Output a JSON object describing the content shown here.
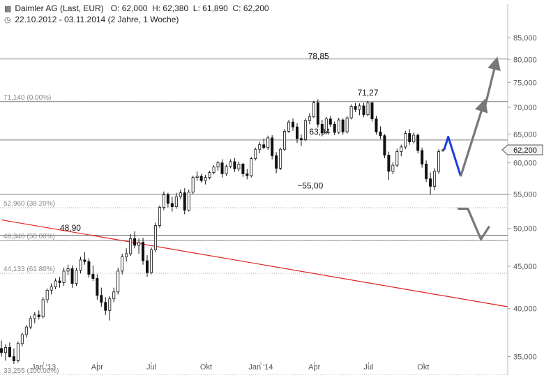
{
  "header": {
    "instrument": "Daimler AG (Last, EUR)",
    "quote": "O: 62,000  H: 62,380  L: 61,890  C: 62,200",
    "period": "22.10.2012 - 03.11.2014 (2 Jahre, 1 Woche)",
    "chart_icon": "candlestick-icon",
    "clock_icon": "clock-icon"
  },
  "chart_data": {
    "type": "candlestick",
    "y_axis": {
      "ticks": [
        35,
        40,
        45,
        50,
        55,
        60,
        65,
        70,
        75,
        80,
        85
      ],
      "tick_labels": [
        "35,000",
        "40,000",
        "45,000",
        "50,000",
        "55,000",
        "60,000",
        "65,000",
        "70,000",
        "75,000",
        "80,000",
        "85,000"
      ],
      "scale": "log",
      "ylim": [
        34.5,
        87
      ],
      "position": "right"
    },
    "x_axis": {
      "tick_labels": [
        "Jan '13",
        "Apr",
        "Jul",
        "Okt",
        "Jan '14",
        "Apr",
        "Jul",
        "Okt"
      ],
      "tick_dates": [
        "2013-01-01",
        "2013-04-01",
        "2013-07-01",
        "2013-10-01",
        "2014-01-01",
        "2014-04-01",
        "2014-07-01",
        "2014-10-01"
      ],
      "range": [
        "2012-10-22",
        "2015-02-20"
      ]
    },
    "last_price_label": "62,200",
    "last_price": 62.2,
    "fibonacci_levels": [
      {
        "label": "71,140 (0.00%)",
        "value": 71.14
      },
      {
        "label": "52,960 (38.20%)",
        "value": 52.96
      },
      {
        "label": "48,346 (50.00%)",
        "value": 48.346
      },
      {
        "label": "44,133 (61.80%)",
        "value": 44.133
      },
      {
        "label": "33,255 (100.00%)",
        "value": 33.255
      }
    ],
    "horizontal_lines": [
      80.1,
      71.14,
      63.94,
      55.0,
      49.05,
      48.346
    ],
    "annotations": [
      {
        "text": "78,85",
        "date": "2014-04-08",
        "value": 78.85
      },
      {
        "text": "71,27",
        "date": "2014-06-30",
        "value": 71.27
      },
      {
        "text": "63,94",
        "date": "2014-04-10",
        "value": 63.94
      },
      {
        "text": "~55,00",
        "date": "2014-03-25",
        "value": 55.0
      },
      {
        "text": "48,90",
        "date": "2013-02-15",
        "value": 48.9
      }
    ],
    "trendline": {
      "color": "#e02020",
      "points": [
        {
          "date": "2012-10-22",
          "value": 51.2
        },
        {
          "date": "2015-02-20",
          "value": 40.2
        }
      ]
    },
    "projections": [
      {
        "color": "#1a3fd8",
        "arrow": false,
        "points": [
          {
            "date": "2014-11-05",
            "value": 62.2
          },
          {
            "date": "2014-11-12",
            "value": 64.5
          },
          {
            "date": "2014-12-03",
            "value": 57.8
          }
        ]
      },
      {
        "color": "#777777",
        "arrow": true,
        "points": [
          {
            "date": "2014-12-03",
            "value": 57.8
          },
          {
            "date": "2015-01-10",
            "value": 70.5
          }
        ]
      },
      {
        "color": "#777777",
        "arrow": true,
        "points": [
          {
            "date": "2015-01-12",
            "value": 69.8
          },
          {
            "date": "2015-01-31",
            "value": 79.2
          }
        ]
      },
      {
        "color": "#777777",
        "arrow": false,
        "points": [
          {
            "date": "2014-11-28",
            "value": 52.8
          },
          {
            "date": "2014-12-15",
            "value": 52.8
          },
          {
            "date": "2015-01-06",
            "value": 48.5
          },
          {
            "date": "2015-01-20",
            "value": 50.3
          }
        ]
      }
    ],
    "series": [
      {
        "date": "2012-10-22",
        "open": 35.8,
        "high": 36.6,
        "low": 35.0,
        "close": 35.4
      },
      {
        "date": "2012-10-29",
        "open": 35.4,
        "high": 36.2,
        "low": 34.6,
        "close": 35.9
      },
      {
        "date": "2012-11-05",
        "open": 35.9,
        "high": 36.4,
        "low": 34.9,
        "close": 35.0
      },
      {
        "date": "2012-11-12",
        "open": 35.0,
        "high": 35.8,
        "low": 34.3,
        "close": 34.6
      },
      {
        "date": "2012-11-19",
        "open": 34.6,
        "high": 36.5,
        "low": 34.4,
        "close": 36.3
      },
      {
        "date": "2012-11-26",
        "open": 36.3,
        "high": 37.4,
        "low": 36.0,
        "close": 37.2
      },
      {
        "date": "2012-12-03",
        "open": 37.2,
        "high": 38.2,
        "low": 36.9,
        "close": 38.0
      },
      {
        "date": "2012-12-10",
        "open": 38.0,
        "high": 39.2,
        "low": 37.8,
        "close": 38.9
      },
      {
        "date": "2012-12-17",
        "open": 38.9,
        "high": 39.6,
        "low": 38.4,
        "close": 39.3
      },
      {
        "date": "2012-12-24",
        "open": 39.3,
        "high": 39.8,
        "low": 38.8,
        "close": 39.1
      },
      {
        "date": "2012-12-31",
        "open": 39.1,
        "high": 41.3,
        "low": 38.9,
        "close": 41.0
      },
      {
        "date": "2013-01-07",
        "open": 41.0,
        "high": 42.3,
        "low": 40.6,
        "close": 42.1
      },
      {
        "date": "2013-01-14",
        "open": 42.1,
        "high": 42.9,
        "low": 41.6,
        "close": 42.5
      },
      {
        "date": "2013-01-21",
        "open": 42.5,
        "high": 43.5,
        "low": 42.2,
        "close": 43.2
      },
      {
        "date": "2013-01-28",
        "open": 43.2,
        "high": 43.7,
        "low": 42.4,
        "close": 43.0
      },
      {
        "date": "2013-02-04",
        "open": 43.0,
        "high": 44.8,
        "low": 42.6,
        "close": 44.4
      },
      {
        "date": "2013-02-11",
        "open": 44.4,
        "high": 45.2,
        "low": 43.9,
        "close": 44.7
      },
      {
        "date": "2013-02-18",
        "open": 44.7,
        "high": 45.1,
        "low": 42.4,
        "close": 42.9
      },
      {
        "date": "2013-02-25",
        "open": 42.9,
        "high": 44.8,
        "low": 42.6,
        "close": 44.5
      },
      {
        "date": "2013-03-04",
        "open": 44.5,
        "high": 46.2,
        "low": 44.1,
        "close": 45.8
      },
      {
        "date": "2013-03-11",
        "open": 45.8,
        "high": 46.8,
        "low": 45.2,
        "close": 45.6
      },
      {
        "date": "2013-03-18",
        "open": 45.6,
        "high": 46.0,
        "low": 43.6,
        "close": 44.0
      },
      {
        "date": "2013-03-25",
        "open": 44.0,
        "high": 45.1,
        "low": 43.2,
        "close": 43.5
      },
      {
        "date": "2013-04-01",
        "open": 43.5,
        "high": 44.0,
        "low": 41.0,
        "close": 41.5
      },
      {
        "date": "2013-04-08",
        "open": 41.5,
        "high": 42.4,
        "low": 40.2,
        "close": 40.7
      },
      {
        "date": "2013-04-15",
        "open": 40.7,
        "high": 41.3,
        "low": 39.3,
        "close": 39.8
      },
      {
        "date": "2013-04-22",
        "open": 39.8,
        "high": 41.4,
        "low": 38.7,
        "close": 41.1
      },
      {
        "date": "2013-04-29",
        "open": 41.1,
        "high": 42.4,
        "low": 40.7,
        "close": 41.9
      },
      {
        "date": "2013-05-06",
        "open": 41.9,
        "high": 44.8,
        "low": 41.6,
        "close": 44.4
      },
      {
        "date": "2013-05-13",
        "open": 44.4,
        "high": 46.6,
        "low": 44.0,
        "close": 46.2
      },
      {
        "date": "2013-05-20",
        "open": 46.2,
        "high": 47.3,
        "low": 45.6,
        "close": 46.6
      },
      {
        "date": "2013-05-27",
        "open": 46.6,
        "high": 49.2,
        "low": 46.3,
        "close": 48.6
      },
      {
        "date": "2013-06-03",
        "open": 48.6,
        "high": 49.6,
        "low": 47.3,
        "close": 47.7
      },
      {
        "date": "2013-06-10",
        "open": 47.7,
        "high": 48.6,
        "low": 46.6,
        "close": 48.1
      },
      {
        "date": "2013-06-17",
        "open": 48.1,
        "high": 48.7,
        "low": 45.2,
        "close": 45.7
      },
      {
        "date": "2013-06-24",
        "open": 45.7,
        "high": 46.4,
        "low": 43.7,
        "close": 44.2
      },
      {
        "date": "2013-07-01",
        "open": 44.2,
        "high": 47.4,
        "low": 44.0,
        "close": 47.1
      },
      {
        "date": "2013-07-08",
        "open": 47.1,
        "high": 50.8,
        "low": 46.8,
        "close": 50.4
      },
      {
        "date": "2013-07-15",
        "open": 50.4,
        "high": 53.3,
        "low": 50.1,
        "close": 53.0
      },
      {
        "date": "2013-07-22",
        "open": 53.0,
        "high": 55.4,
        "low": 52.6,
        "close": 54.9
      },
      {
        "date": "2013-07-29",
        "open": 54.9,
        "high": 55.2,
        "low": 53.0,
        "close": 53.6
      },
      {
        "date": "2013-08-05",
        "open": 53.6,
        "high": 54.6,
        "low": 52.4,
        "close": 53.1
      },
      {
        "date": "2013-08-12",
        "open": 53.1,
        "high": 55.2,
        "low": 52.8,
        "close": 54.6
      },
      {
        "date": "2013-08-19",
        "open": 54.6,
        "high": 55.7,
        "low": 54.2,
        "close": 55.2
      },
      {
        "date": "2013-08-26",
        "open": 55.2,
        "high": 55.9,
        "low": 52.0,
        "close": 52.6
      },
      {
        "date": "2013-09-02",
        "open": 52.6,
        "high": 55.7,
        "low": 52.4,
        "close": 55.3
      },
      {
        "date": "2013-09-09",
        "open": 55.3,
        "high": 57.9,
        "low": 55.0,
        "close": 57.6
      },
      {
        "date": "2013-09-16",
        "open": 57.6,
        "high": 58.6,
        "low": 57.1,
        "close": 57.8
      },
      {
        "date": "2013-09-23",
        "open": 57.8,
        "high": 58.2,
        "low": 56.8,
        "close": 57.1
      },
      {
        "date": "2013-09-30",
        "open": 57.1,
        "high": 58.0,
        "low": 56.5,
        "close": 57.6
      },
      {
        "date": "2013-10-07",
        "open": 57.6,
        "high": 58.7,
        "low": 57.3,
        "close": 58.4
      },
      {
        "date": "2013-10-14",
        "open": 58.4,
        "high": 59.6,
        "low": 58.1,
        "close": 59.3
      },
      {
        "date": "2013-10-21",
        "open": 59.3,
        "high": 60.3,
        "low": 58.7,
        "close": 60.0
      },
      {
        "date": "2013-10-28",
        "open": 60.0,
        "high": 60.6,
        "low": 57.6,
        "close": 58.2
      },
      {
        "date": "2013-11-04",
        "open": 58.2,
        "high": 59.7,
        "low": 57.9,
        "close": 59.4
      },
      {
        "date": "2013-11-11",
        "open": 59.4,
        "high": 60.6,
        "low": 59.1,
        "close": 60.2
      },
      {
        "date": "2013-11-18",
        "open": 60.2,
        "high": 60.8,
        "low": 58.5,
        "close": 59.0
      },
      {
        "date": "2013-11-25",
        "open": 59.0,
        "high": 60.2,
        "low": 58.6,
        "close": 59.8
      },
      {
        "date": "2013-12-02",
        "open": 59.8,
        "high": 60.0,
        "low": 57.7,
        "close": 58.2
      },
      {
        "date": "2013-12-09",
        "open": 58.2,
        "high": 59.0,
        "low": 57.3,
        "close": 57.9
      },
      {
        "date": "2013-12-16",
        "open": 57.9,
        "high": 61.0,
        "low": 57.6,
        "close": 60.7
      },
      {
        "date": "2013-12-23",
        "open": 60.7,
        "high": 62.6,
        "low": 60.4,
        "close": 62.3
      },
      {
        "date": "2013-12-30",
        "open": 62.3,
        "high": 63.6,
        "low": 61.6,
        "close": 63.1
      },
      {
        "date": "2014-01-06",
        "open": 63.1,
        "high": 64.2,
        "low": 62.3,
        "close": 62.6
      },
      {
        "date": "2014-01-13",
        "open": 62.6,
        "high": 64.7,
        "low": 62.2,
        "close": 64.3
      },
      {
        "date": "2014-01-20",
        "open": 64.3,
        "high": 64.8,
        "low": 60.6,
        "close": 61.2
      },
      {
        "date": "2014-01-27",
        "open": 61.2,
        "high": 61.8,
        "low": 58.3,
        "close": 59.1
      },
      {
        "date": "2014-02-03",
        "open": 59.1,
        "high": 62.6,
        "low": 58.8,
        "close": 62.3
      },
      {
        "date": "2014-02-10",
        "open": 62.3,
        "high": 65.9,
        "low": 62.0,
        "close": 65.5
      },
      {
        "date": "2014-02-17",
        "open": 65.5,
        "high": 67.6,
        "low": 65.2,
        "close": 67.2
      },
      {
        "date": "2014-02-24",
        "open": 67.2,
        "high": 67.9,
        "low": 65.6,
        "close": 66.3
      },
      {
        "date": "2014-03-03",
        "open": 66.3,
        "high": 67.0,
        "low": 63.4,
        "close": 64.2
      },
      {
        "date": "2014-03-10",
        "open": 64.2,
        "high": 64.9,
        "low": 62.9,
        "close": 64.0
      },
      {
        "date": "2014-03-17",
        "open": 64.0,
        "high": 67.9,
        "low": 63.8,
        "close": 67.5
      },
      {
        "date": "2014-03-24",
        "open": 67.5,
        "high": 68.9,
        "low": 66.8,
        "close": 68.2
      },
      {
        "date": "2014-03-31",
        "open": 68.2,
        "high": 71.3,
        "low": 68.0,
        "close": 70.9
      },
      {
        "date": "2014-04-07",
        "open": 70.9,
        "high": 71.6,
        "low": 66.2,
        "close": 66.8
      },
      {
        "date": "2014-04-14",
        "open": 66.8,
        "high": 67.6,
        "low": 64.6,
        "close": 65.2
      },
      {
        "date": "2014-04-21",
        "open": 65.2,
        "high": 68.2,
        "low": 64.9,
        "close": 67.8
      },
      {
        "date": "2014-04-28",
        "open": 67.8,
        "high": 68.4,
        "low": 66.3,
        "close": 66.8
      },
      {
        "date": "2014-05-05",
        "open": 66.8,
        "high": 67.3,
        "low": 64.8,
        "close": 65.3
      },
      {
        "date": "2014-05-12",
        "open": 65.3,
        "high": 68.0,
        "low": 65.0,
        "close": 67.6
      },
      {
        "date": "2014-05-19",
        "open": 67.6,
        "high": 67.9,
        "low": 64.9,
        "close": 65.4
      },
      {
        "date": "2014-05-26",
        "open": 65.4,
        "high": 68.3,
        "low": 65.1,
        "close": 68.0
      },
      {
        "date": "2014-06-02",
        "open": 68.0,
        "high": 70.6,
        "low": 67.7,
        "close": 70.2
      },
      {
        "date": "2014-06-09",
        "open": 70.2,
        "high": 70.9,
        "low": 69.1,
        "close": 69.6
      },
      {
        "date": "2014-06-16",
        "open": 69.6,
        "high": 70.8,
        "low": 68.5,
        "close": 70.3
      },
      {
        "date": "2014-06-23",
        "open": 70.3,
        "high": 70.9,
        "low": 68.1,
        "close": 68.6
      },
      {
        "date": "2014-06-30",
        "open": 68.6,
        "high": 71.3,
        "low": 68.3,
        "close": 70.9
      },
      {
        "date": "2014-07-07",
        "open": 70.9,
        "high": 71.1,
        "low": 67.3,
        "close": 67.8
      },
      {
        "date": "2014-07-14",
        "open": 67.8,
        "high": 68.4,
        "low": 64.9,
        "close": 65.4
      },
      {
        "date": "2014-07-21",
        "open": 65.4,
        "high": 66.4,
        "low": 64.1,
        "close": 64.7
      },
      {
        "date": "2014-07-28",
        "open": 64.7,
        "high": 65.0,
        "low": 60.8,
        "close": 61.3
      },
      {
        "date": "2014-08-04",
        "open": 61.3,
        "high": 61.9,
        "low": 57.2,
        "close": 58.6
      },
      {
        "date": "2014-08-11",
        "open": 58.6,
        "high": 60.1,
        "low": 58.1,
        "close": 59.6
      },
      {
        "date": "2014-08-18",
        "open": 59.6,
        "high": 62.4,
        "low": 59.3,
        "close": 61.9
      },
      {
        "date": "2014-08-25",
        "open": 61.9,
        "high": 63.1,
        "low": 61.1,
        "close": 62.7
      },
      {
        "date": "2014-09-01",
        "open": 62.7,
        "high": 65.6,
        "low": 62.3,
        "close": 65.1
      },
      {
        "date": "2014-09-08",
        "open": 65.1,
        "high": 65.9,
        "low": 63.1,
        "close": 63.6
      },
      {
        "date": "2014-09-15",
        "open": 63.6,
        "high": 65.3,
        "low": 63.3,
        "close": 64.8
      },
      {
        "date": "2014-09-22",
        "open": 64.8,
        "high": 65.1,
        "low": 61.6,
        "close": 62.1
      },
      {
        "date": "2014-09-29",
        "open": 62.1,
        "high": 62.6,
        "low": 59.2,
        "close": 59.8
      },
      {
        "date": "2014-10-06",
        "open": 59.8,
        "high": 60.4,
        "low": 56.9,
        "close": 57.4
      },
      {
        "date": "2014-10-13",
        "open": 57.4,
        "high": 58.4,
        "low": 54.9,
        "close": 56.2
      },
      {
        "date": "2014-10-20",
        "open": 56.2,
        "high": 59.1,
        "low": 55.6,
        "close": 58.6
      },
      {
        "date": "2014-10-27",
        "open": 58.6,
        "high": 62.3,
        "low": 58.2,
        "close": 61.9
      },
      {
        "date": "2014-11-03",
        "open": 62.0,
        "high": 62.38,
        "low": 61.89,
        "close": 62.2
      }
    ]
  }
}
